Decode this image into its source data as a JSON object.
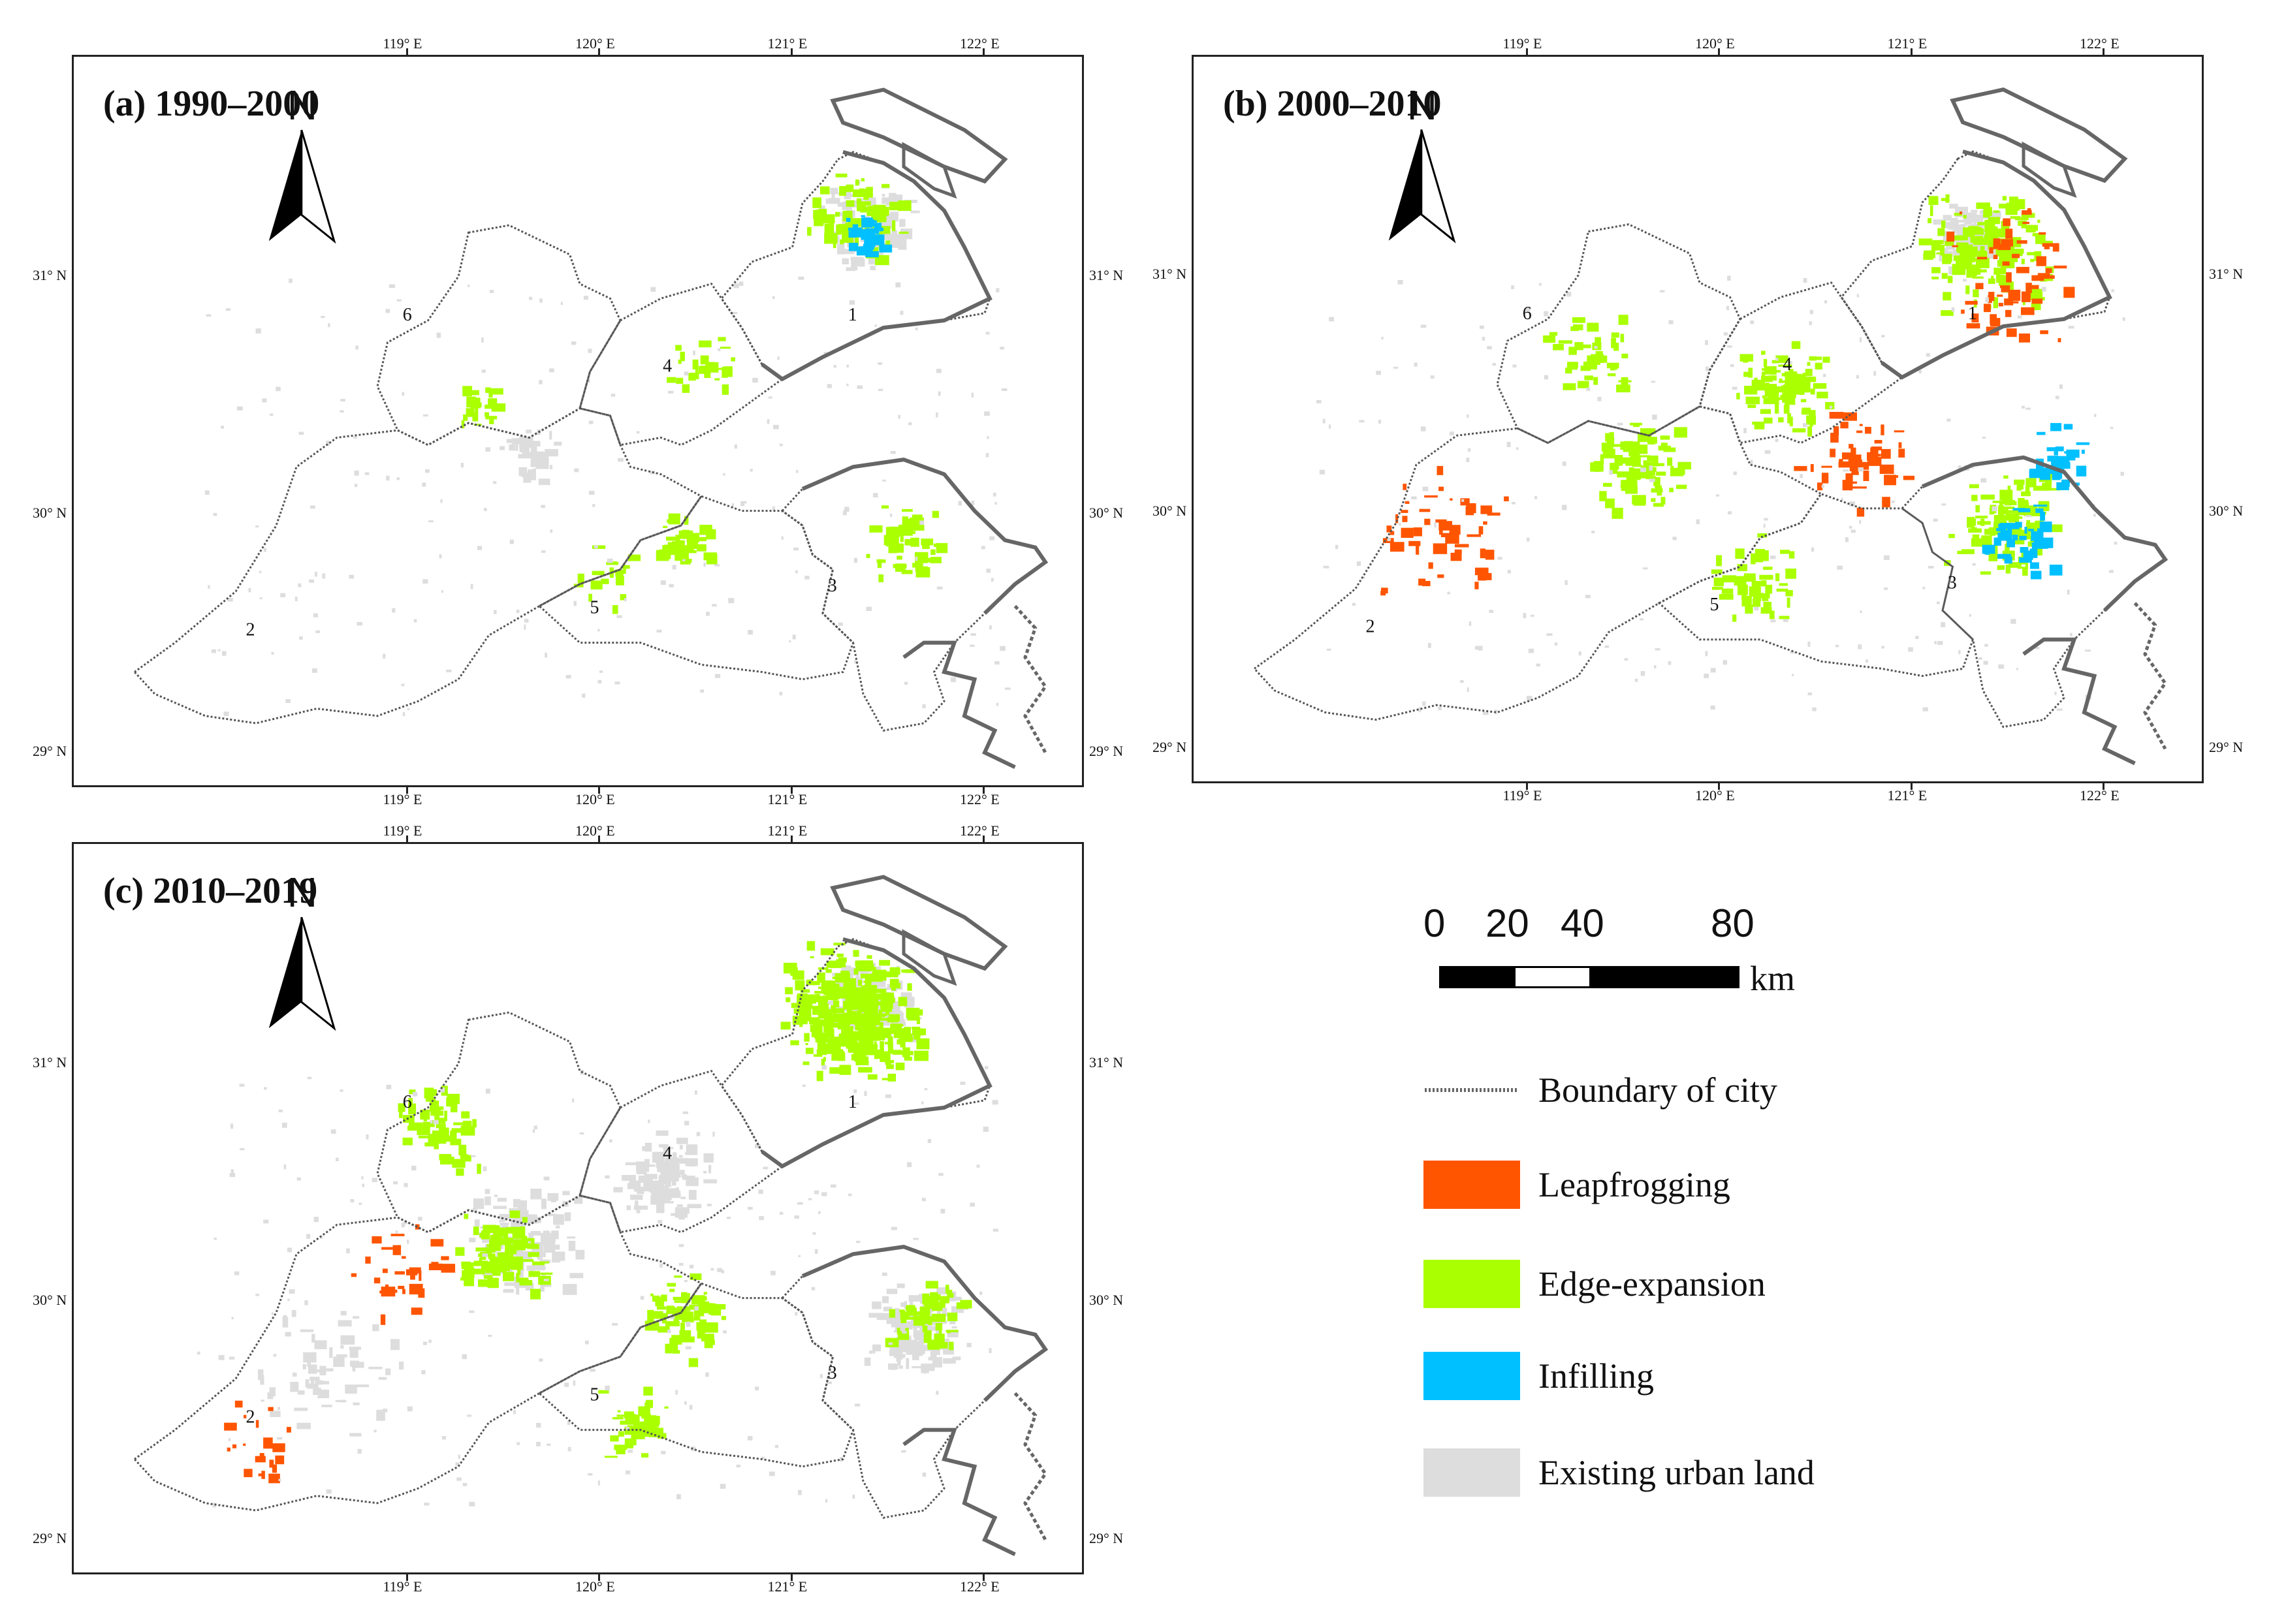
{
  "panels": [
    {
      "title": "(a) 1990–2000",
      "key": "a"
    },
    {
      "title": "(b) 2000–2010",
      "key": "b"
    },
    {
      "title": "(c) 2010–2019",
      "key": "c"
    }
  ],
  "north_label": "N",
  "lon_ticks": [
    "119° E",
    "120° E",
    "121° E",
    "122° E"
  ],
  "lat_ticks": [
    "31° N",
    "30° N",
    "29° N"
  ],
  "region_labels": [
    "1",
    "2",
    "3",
    "4",
    "5",
    "6"
  ],
  "scale_bar": {
    "ticks": [
      "0",
      "20",
      "40",
      "80"
    ],
    "unit": "km"
  },
  "legend": {
    "items": [
      {
        "label": "Boundary of city",
        "color": "#666666",
        "type": "line"
      },
      {
        "label": "Leapfrogging",
        "color": "#ff5500",
        "type": "patch"
      },
      {
        "label": "Edge-expansion",
        "color": "#aaff00",
        "type": "patch"
      },
      {
        "label": "Infilling",
        "color": "#00c0ff",
        "type": "patch"
      },
      {
        "label": "Existing urban land",
        "color": "#dddddd",
        "type": "patch"
      }
    ]
  }
}
